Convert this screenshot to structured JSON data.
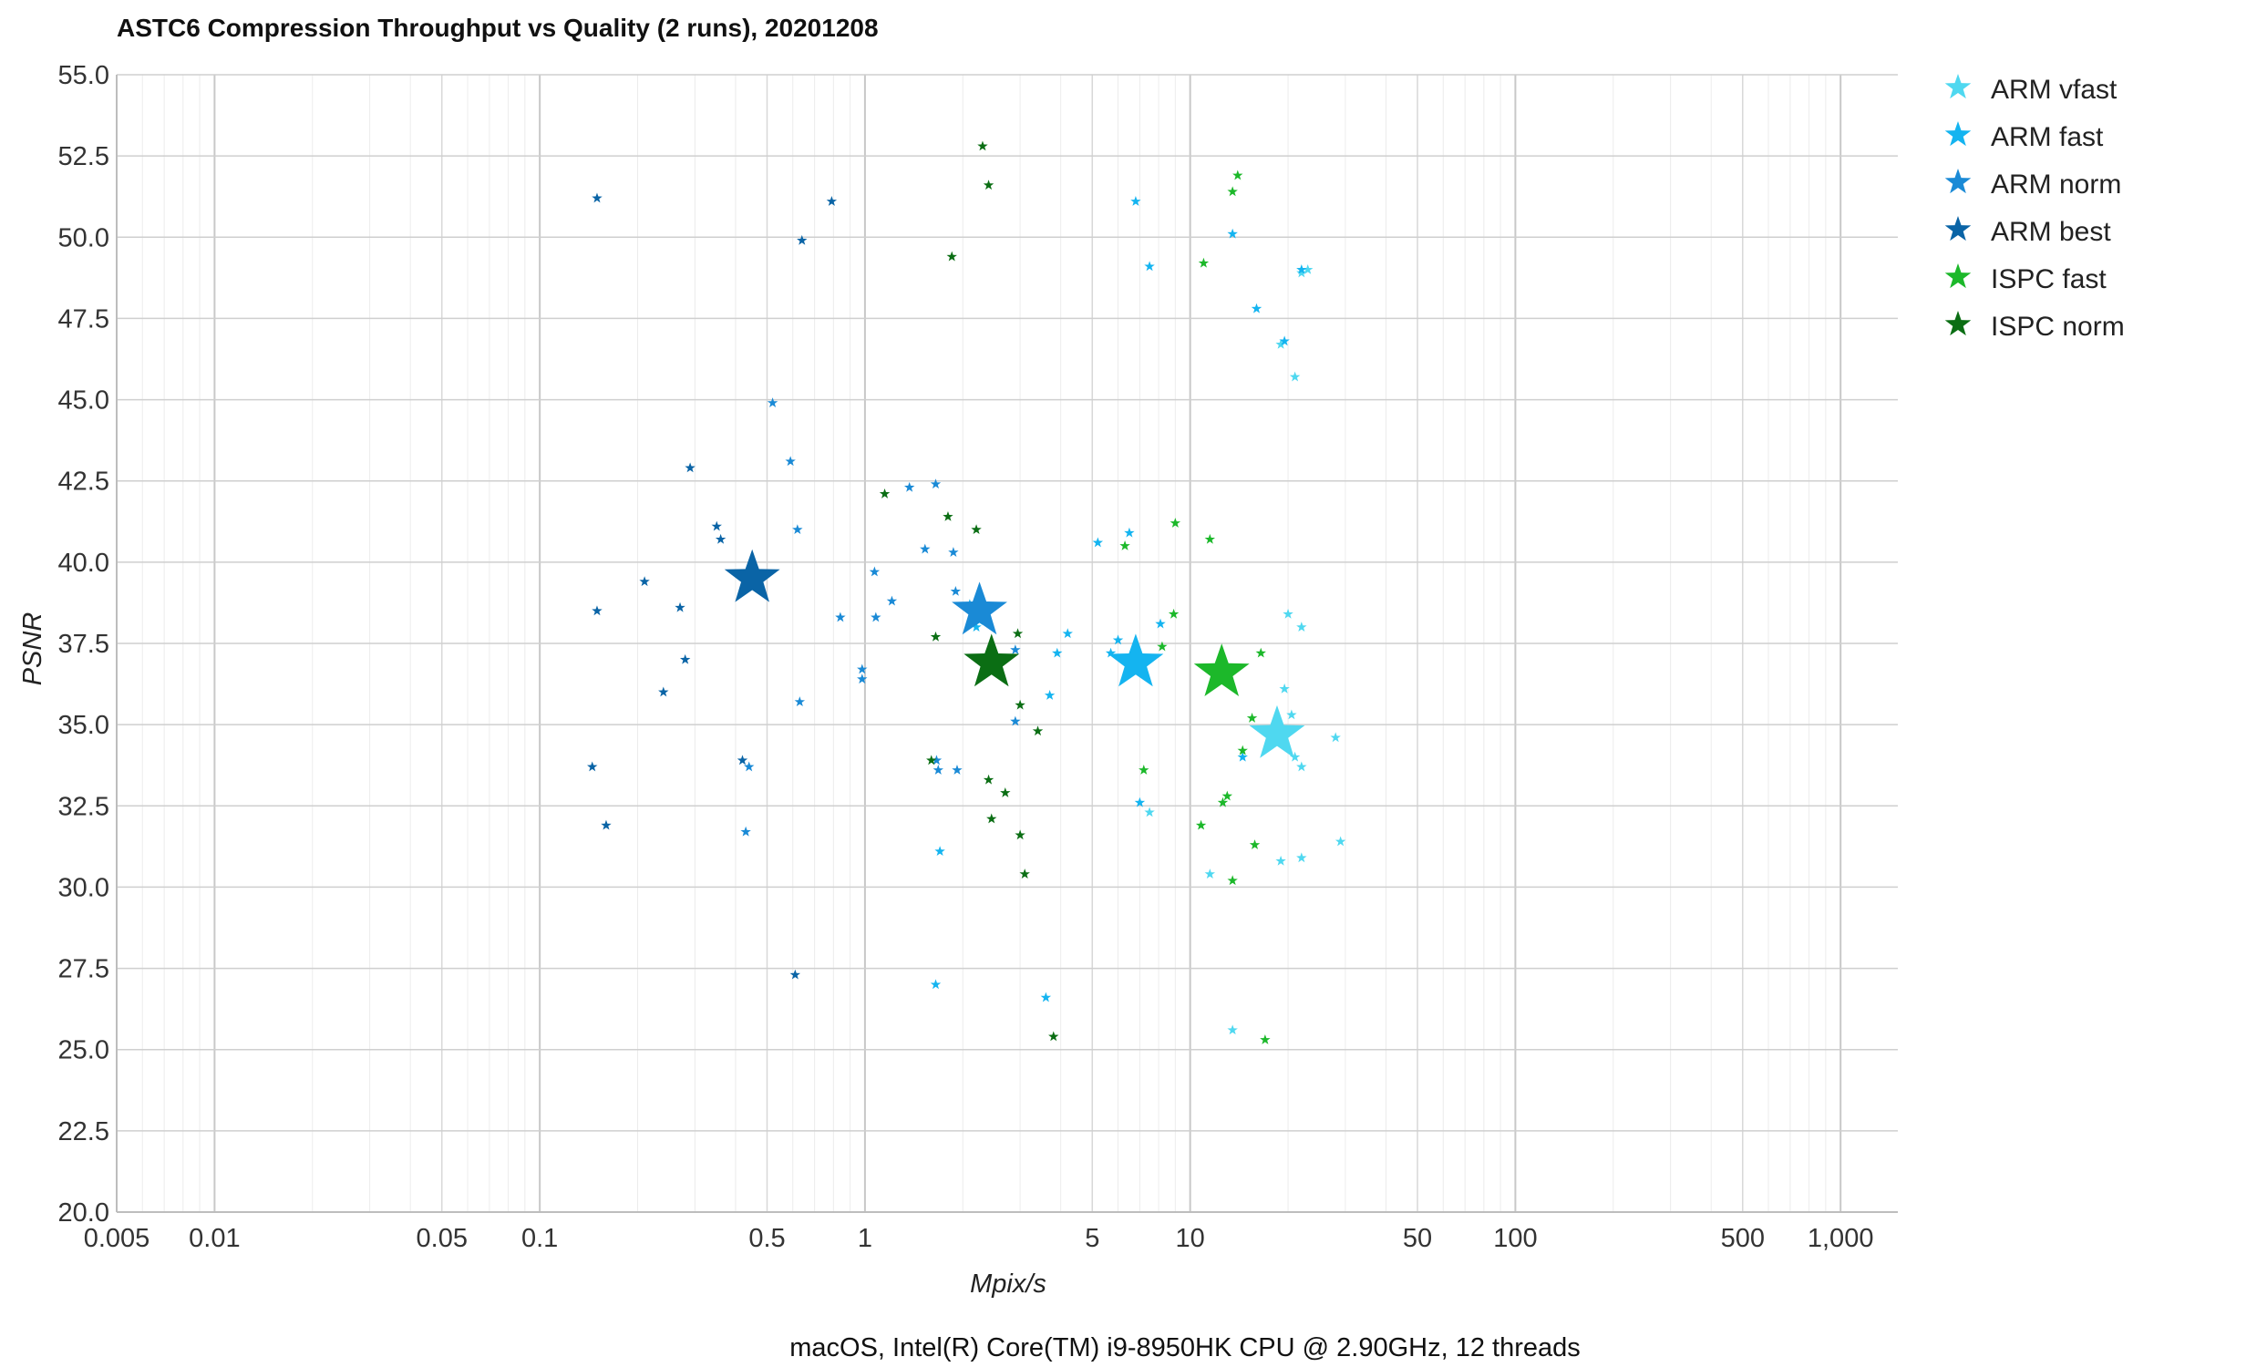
{
  "chart_data": {
    "type": "scatter",
    "title": "ASTC6 Compression Throughput vs Quality (2 runs), 20201208",
    "subtitle": "macOS, Intel(R) Core(TM) i9-8950HK CPU @ 2.90GHz, 12 threads",
    "xlabel": "Mpix/s",
    "ylabel": "PSNR",
    "x_scale": "log",
    "xlim": [
      0.005,
      1500
    ],
    "ylim": [
      20,
      55
    ],
    "x_ticks": [
      0.005,
      0.01,
      0.05,
      0.1,
      0.5,
      1,
      5,
      10,
      50,
      100,
      500,
      1000
    ],
    "x_tick_labels": [
      "0.005",
      "0.01",
      "0.05",
      "0.1",
      "0.5",
      "1",
      "5",
      "10",
      "50",
      "100",
      "500",
      "1,000"
    ],
    "y_ticks": [
      20,
      22.5,
      25,
      27.5,
      30,
      32.5,
      35,
      37.5,
      40,
      42.5,
      45,
      47.5,
      50,
      52.5,
      55
    ],
    "y_tick_labels": [
      "20.0",
      "22.5",
      "25.0",
      "27.5",
      "30.0",
      "32.5",
      "35.0",
      "37.5",
      "40.0",
      "42.5",
      "45.0",
      "47.5",
      "50.0",
      "52.5",
      "55.0"
    ],
    "grid": true,
    "legend_position": "top-right",
    "marker": "star",
    "series": [
      {
        "name": "ARM vfast",
        "color": "#4fd8f0",
        "mean": [
          18.5,
          34.7
        ],
        "points": [
          [
            20,
            38.4
          ],
          [
            22,
            38.0
          ],
          [
            19.5,
            36.1
          ],
          [
            20.5,
            35.3
          ],
          [
            21,
            34.0
          ],
          [
            22,
            33.7
          ],
          [
            28,
            34.6
          ],
          [
            19,
            30.8
          ],
          [
            22,
            30.9
          ],
          [
            29,
            31.4
          ],
          [
            11.5,
            30.4
          ],
          [
            13.5,
            25.6
          ],
          [
            21,
            45.7
          ],
          [
            19,
            46.7
          ],
          [
            22,
            48.9
          ],
          [
            23,
            49.0
          ],
          [
            7.5,
            32.3
          ]
        ]
      },
      {
        "name": "ARM fast",
        "color": "#14b4f0",
        "mean": [
          6.8,
          36.9
        ],
        "points": [
          [
            6.8,
            51.1
          ],
          [
            7.5,
            49.1
          ],
          [
            13.5,
            50.1
          ],
          [
            16,
            47.8
          ],
          [
            19.5,
            46.8
          ],
          [
            22,
            49.0
          ],
          [
            5.2,
            40.6
          ],
          [
            6.5,
            40.9
          ],
          [
            6.0,
            37.6
          ],
          [
            5.7,
            37.2
          ],
          [
            8.1,
            38.1
          ],
          [
            4.2,
            37.8
          ],
          [
            3.9,
            37.2
          ],
          [
            14.5,
            34.0
          ],
          [
            7.0,
            32.6
          ],
          [
            3.7,
            35.9
          ],
          [
            3.6,
            26.6
          ],
          [
            1.7,
            31.1
          ],
          [
            1.65,
            27.0
          ],
          [
            2.1,
            38.7
          ],
          [
            2.2,
            38.0
          ],
          [
            2.25,
            38.2
          ]
        ]
      },
      {
        "name": "ARM norm",
        "color": "#1a8ad6",
        "mean": [
          2.25,
          38.5
        ],
        "points": [
          [
            0.52,
            44.9
          ],
          [
            0.59,
            43.1
          ],
          [
            0.62,
            41.0
          ],
          [
            1.37,
            42.3
          ],
          [
            1.65,
            42.4
          ],
          [
            1.53,
            40.4
          ],
          [
            1.87,
            40.3
          ],
          [
            1.07,
            39.7
          ],
          [
            0.98,
            36.7
          ],
          [
            0.98,
            36.4
          ],
          [
            1.08,
            38.3
          ],
          [
            1.21,
            38.8
          ],
          [
            0.84,
            38.3
          ],
          [
            1.9,
            39.1
          ],
          [
            0.63,
            35.7
          ],
          [
            1.66,
            33.9
          ],
          [
            1.68,
            33.6
          ],
          [
            1.92,
            33.6
          ],
          [
            0.43,
            31.7
          ],
          [
            0.44,
            33.7
          ],
          [
            2.9,
            35.1
          ],
          [
            2.9,
            37.3
          ]
        ]
      },
      {
        "name": "ARM best",
        "color": "#0a64a6",
        "mean": [
          0.45,
          39.5
        ],
        "points": [
          [
            0.15,
            51.2
          ],
          [
            0.64,
            49.9
          ],
          [
            0.79,
            51.1
          ],
          [
            0.29,
            42.9
          ],
          [
            0.35,
            41.1
          ],
          [
            0.36,
            40.7
          ],
          [
            0.21,
            39.4
          ],
          [
            0.15,
            38.5
          ],
          [
            0.27,
            38.6
          ],
          [
            0.28,
            37.0
          ],
          [
            0.24,
            36.0
          ],
          [
            0.145,
            33.7
          ],
          [
            0.16,
            31.9
          ],
          [
            0.42,
            33.9
          ],
          [
            0.61,
            27.3
          ]
        ]
      },
      {
        "name": "ISPC fast",
        "color": "#1cb82a",
        "mean": [
          12.5,
          36.6
        ],
        "points": [
          [
            14,
            51.9
          ],
          [
            13.5,
            51.4
          ],
          [
            11,
            49.2
          ],
          [
            9,
            41.2
          ],
          [
            11.5,
            40.7
          ],
          [
            6.3,
            40.5
          ],
          [
            8.9,
            38.4
          ],
          [
            8.2,
            37.4
          ],
          [
            16.5,
            37.2
          ],
          [
            15.5,
            35.2
          ],
          [
            14.5,
            34.2
          ],
          [
            7.2,
            33.6
          ],
          [
            13,
            32.8
          ],
          [
            12.6,
            32.6
          ],
          [
            10.8,
            31.9
          ],
          [
            15.8,
            31.3
          ],
          [
            13.5,
            30.2
          ],
          [
            17,
            25.3
          ]
        ]
      },
      {
        "name": "ISPC norm",
        "color": "#0b6e14",
        "mean": [
          2.45,
          36.9
        ],
        "points": [
          [
            2.3,
            52.8
          ],
          [
            2.4,
            51.6
          ],
          [
            1.85,
            49.4
          ],
          [
            1.15,
            42.1
          ],
          [
            1.8,
            41.4
          ],
          [
            2.2,
            41.0
          ],
          [
            1.65,
            37.7
          ],
          [
            2.95,
            37.8
          ],
          [
            3.0,
            35.6
          ],
          [
            3.4,
            34.8
          ],
          [
            1.6,
            33.9
          ],
          [
            2.4,
            33.3
          ],
          [
            2.7,
            32.9
          ],
          [
            2.45,
            32.1
          ],
          [
            3.0,
            31.6
          ],
          [
            3.1,
            30.4
          ],
          [
            3.8,
            25.4
          ]
        ]
      }
    ]
  }
}
